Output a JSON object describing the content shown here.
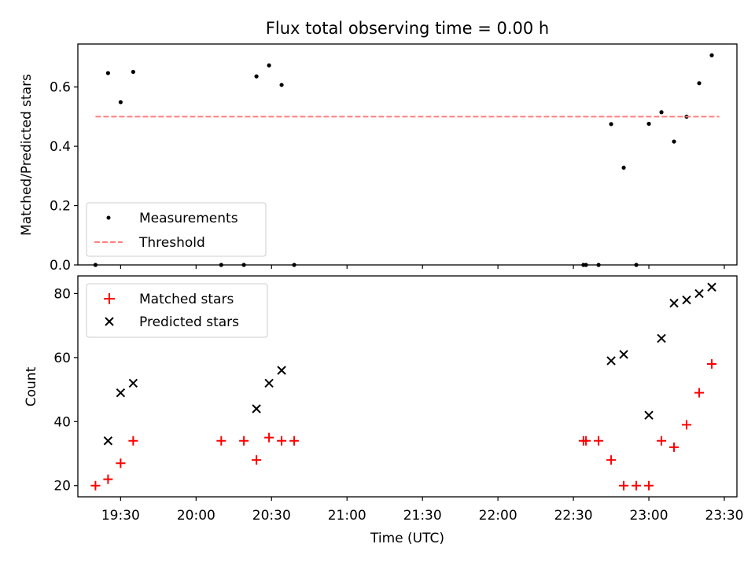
{
  "chart_data": [
    {
      "type": "scatter",
      "title": "Flux total observing time = 0.00 h",
      "ylabel": "Matched/Predicted stars",
      "xlabel": "",
      "xlim": [
        "19:13",
        "23:35"
      ],
      "ylim": [
        0.0,
        0.745
      ],
      "yticks": [
        0.0,
        0.2,
        0.4,
        0.6
      ],
      "ytick_labels": [
        "0.0",
        "0.2",
        "0.4",
        "0.6"
      ],
      "xticks": [
        "19:30",
        "20:00",
        "20:30",
        "21:00",
        "21:30",
        "22:00",
        "22:30",
        "23:00",
        "23:30"
      ],
      "grid": false,
      "legend_position": "lower-left",
      "legend": [
        "Measurements",
        "Threshold"
      ],
      "series": [
        {
          "name": "Measurements",
          "marker": "dot",
          "color": "#000000",
          "points": [
            {
              "x": "19:20",
              "y": 0.0
            },
            {
              "x": "19:25",
              "y": 0.647
            },
            {
              "x": "19:30",
              "y": 0.549
            },
            {
              "x": "19:35",
              "y": 0.651
            },
            {
              "x": "20:10",
              "y": 0.0
            },
            {
              "x": "20:19",
              "y": 0.0
            },
            {
              "x": "20:24",
              "y": 0.636
            },
            {
              "x": "20:29",
              "y": 0.673
            },
            {
              "x": "20:34",
              "y": 0.607
            },
            {
              "x": "20:39",
              "y": 0.0
            },
            {
              "x": "22:34",
              "y": 0.0
            },
            {
              "x": "22:35",
              "y": 0.0
            },
            {
              "x": "22:40",
              "y": 0.0
            },
            {
              "x": "22:45",
              "y": 0.475
            },
            {
              "x": "22:50",
              "y": 0.328
            },
            {
              "x": "22:55",
              "y": 0.0
            },
            {
              "x": "23:00",
              "y": 0.476
            },
            {
              "x": "23:05",
              "y": 0.515
            },
            {
              "x": "23:10",
              "y": 0.416
            },
            {
              "x": "23:15",
              "y": 0.5
            },
            {
              "x": "23:20",
              "y": 0.613
            },
            {
              "x": "23:25",
              "y": 0.707
            }
          ]
        },
        {
          "name": "Threshold",
          "marker": "dashed-line",
          "color": "#ff7f7f",
          "points": [
            {
              "x": "19:20",
              "y": 0.5
            },
            {
              "x": "23:28",
              "y": 0.5
            }
          ]
        }
      ]
    },
    {
      "type": "scatter",
      "title": "",
      "ylabel": "Count",
      "xlabel": "Time (UTC)",
      "xlim": [
        "19:13",
        "23:35"
      ],
      "ylim": [
        16.5,
        85.5
      ],
      "yticks": [
        20,
        40,
        60,
        80
      ],
      "ytick_labels": [
        "20",
        "40",
        "60",
        "80"
      ],
      "xticks": [
        "19:30",
        "20:00",
        "20:30",
        "21:00",
        "21:30",
        "22:00",
        "22:30",
        "23:00",
        "23:30"
      ],
      "xtick_labels": [
        "19:30",
        "20:00",
        "20:30",
        "21:00",
        "21:30",
        "22:00",
        "22:30",
        "23:00",
        "23:30"
      ],
      "grid": false,
      "legend_position": "upper-left",
      "legend": [
        "Matched stars",
        "Predicted stars"
      ],
      "series": [
        {
          "name": "Matched stars",
          "marker": "plus",
          "color": "#ff0000",
          "points": [
            {
              "x": "19:20",
              "y": 20
            },
            {
              "x": "19:25",
              "y": 22
            },
            {
              "x": "19:30",
              "y": 27
            },
            {
              "x": "19:35",
              "y": 34
            },
            {
              "x": "20:10",
              "y": 34
            },
            {
              "x": "20:19",
              "y": 34
            },
            {
              "x": "20:24",
              "y": 28
            },
            {
              "x": "20:29",
              "y": 35
            },
            {
              "x": "20:34",
              "y": 34
            },
            {
              "x": "20:39",
              "y": 34
            },
            {
              "x": "22:34",
              "y": 34
            },
            {
              "x": "22:35",
              "y": 34
            },
            {
              "x": "22:40",
              "y": 34
            },
            {
              "x": "22:45",
              "y": 28
            },
            {
              "x": "22:50",
              "y": 20
            },
            {
              "x": "22:55",
              "y": 20
            },
            {
              "x": "23:00",
              "y": 20
            },
            {
              "x": "23:05",
              "y": 34
            },
            {
              "x": "23:10",
              "y": 32
            },
            {
              "x": "23:15",
              "y": 39
            },
            {
              "x": "23:20",
              "y": 49
            },
            {
              "x": "23:25",
              "y": 58
            }
          ]
        },
        {
          "name": "Predicted stars",
          "marker": "x",
          "color": "#000000",
          "points": [
            {
              "x": "19:25",
              "y": 34
            },
            {
              "x": "19:30",
              "y": 49
            },
            {
              "x": "19:35",
              "y": 52
            },
            {
              "x": "20:24",
              "y": 44
            },
            {
              "x": "20:29",
              "y": 52
            },
            {
              "x": "20:34",
              "y": 56
            },
            {
              "x": "22:45",
              "y": 59
            },
            {
              "x": "22:50",
              "y": 61
            },
            {
              "x": "23:00",
              "y": 42
            },
            {
              "x": "23:05",
              "y": 66
            },
            {
              "x": "23:10",
              "y": 77
            },
            {
              "x": "23:15",
              "y": 78
            },
            {
              "x": "23:20",
              "y": 80
            },
            {
              "x": "23:25",
              "y": 82
            }
          ]
        }
      ]
    }
  ]
}
